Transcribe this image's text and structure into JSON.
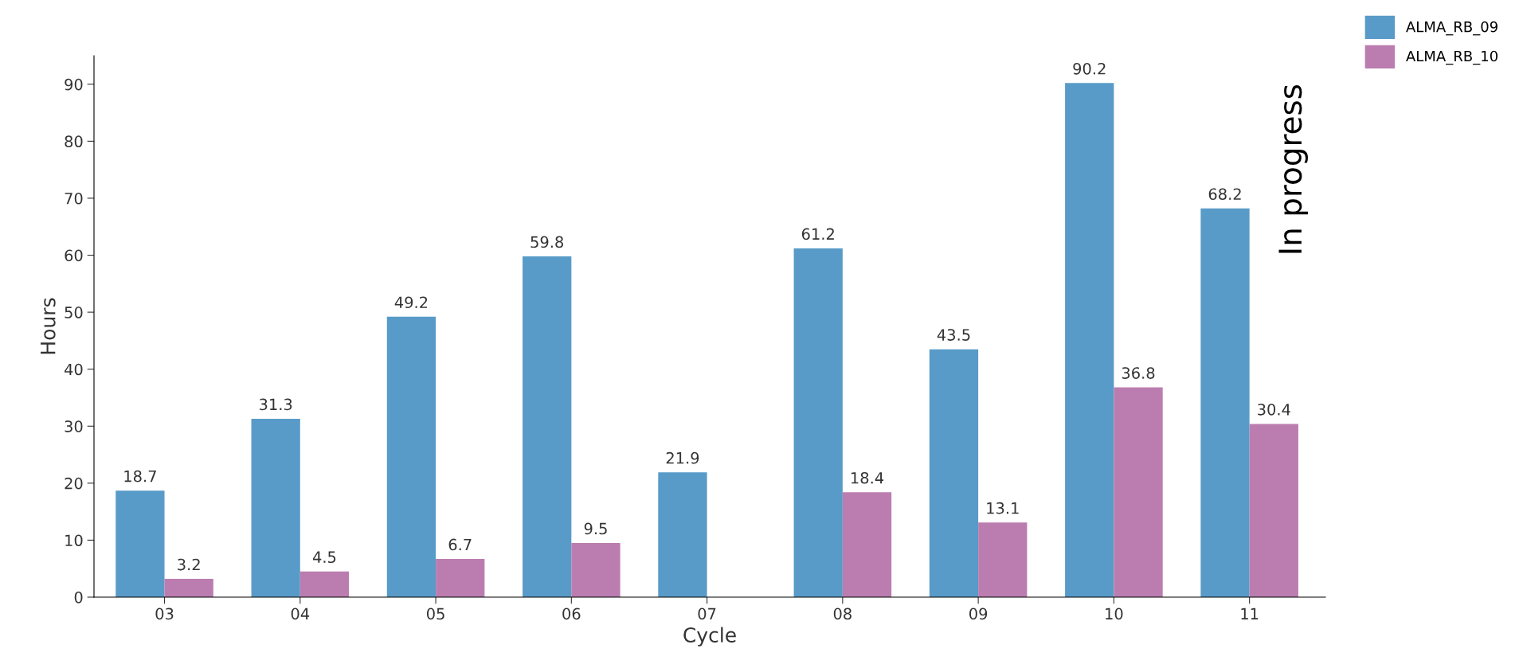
{
  "chart_data": {
    "type": "bar",
    "xlabel": "Cycle",
    "ylabel": "Hours",
    "categories": [
      "03",
      "04",
      "05",
      "06",
      "07",
      "08",
      "09",
      "10",
      "11"
    ],
    "series": [
      {
        "name": "ALMA_RB_09",
        "color": "#589bc8",
        "values": [
          18.7,
          31.3,
          49.2,
          59.8,
          21.9,
          61.2,
          43.5,
          90.2,
          68.2
        ]
      },
      {
        "name": "ALMA_RB_10",
        "color": "#bb7daf",
        "values": [
          3.2,
          4.5,
          6.7,
          9.5,
          null,
          18.4,
          13.1,
          36.8,
          30.4
        ]
      }
    ],
    "ylim": [
      0,
      95
    ],
    "yticks": [
      0,
      10,
      20,
      30,
      40,
      50,
      60,
      70,
      80,
      90
    ],
    "data_labels": true,
    "grid": false,
    "legend": "top right",
    "annotations": [
      "In progress"
    ]
  }
}
